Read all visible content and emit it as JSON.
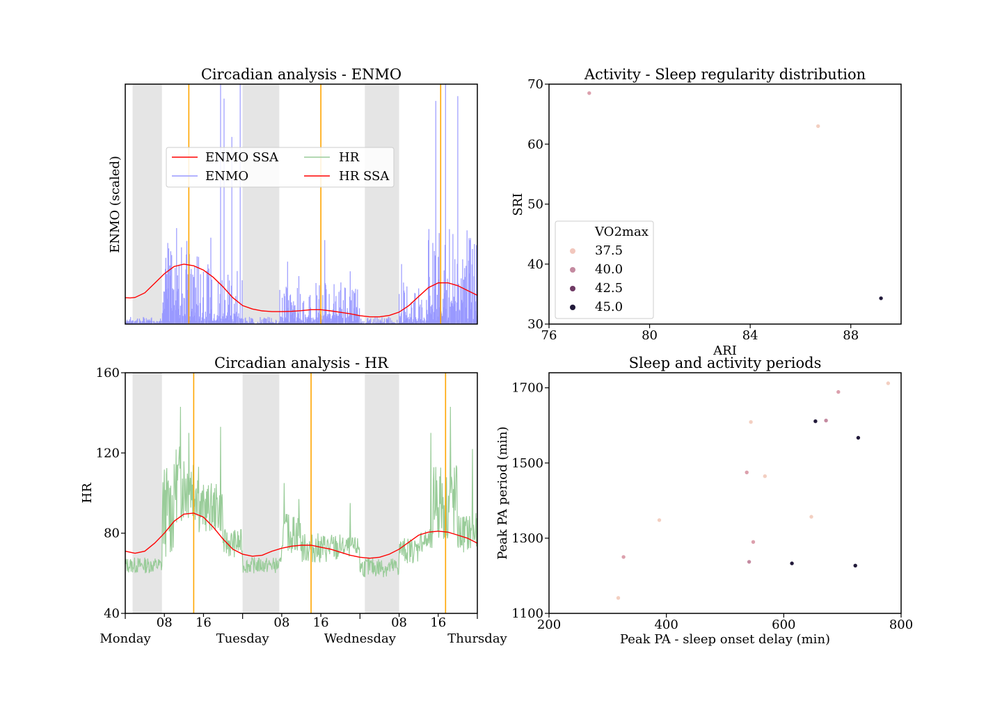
{
  "chart_data": [
    {
      "type": "line",
      "title": "Circadian analysis - ENMO",
      "xlabel": "",
      "ylabel": "ENMO (scaled)",
      "x_range_hours": [
        0,
        72
      ],
      "ylim": [
        0,
        1
      ],
      "night_shading_hours": [
        [
          1.5,
          7.5
        ],
        [
          24,
          31.5
        ],
        [
          49,
          56
        ]
      ],
      "peak_lines_hours": [
        13,
        40,
        64.5
      ],
      "legend": {
        "position": "upper-center",
        "entries": [
          "ENMO SSA",
          "ENMO",
          "HR",
          "HR SSA"
        ]
      },
      "series": [
        {
          "name": "ENMO SSA",
          "color": "#ff0000",
          "points": [
            [
              0,
              0.11
            ],
            [
              1,
              0.109
            ],
            [
              2,
              0.111
            ],
            [
              4,
              0.13
            ],
            [
              6,
              0.17
            ],
            [
              8,
              0.21
            ],
            [
              10,
              0.24
            ],
            [
              12,
              0.25
            ],
            [
              14,
              0.243
            ],
            [
              16,
              0.225
            ],
            [
              18,
              0.195
            ],
            [
              20,
              0.155
            ],
            [
              22,
              0.11
            ],
            [
              24,
              0.077
            ],
            [
              26,
              0.063
            ],
            [
              28,
              0.055
            ],
            [
              30,
              0.052
            ],
            [
              32,
              0.052
            ],
            [
              34,
              0.053
            ],
            [
              36,
              0.056
            ],
            [
              38,
              0.06
            ],
            [
              40,
              0.06
            ],
            [
              42,
              0.055
            ],
            [
              44,
              0.049
            ],
            [
              46,
              0.043
            ],
            [
              48,
              0.035
            ],
            [
              50,
              0.03
            ],
            [
              52,
              0.03
            ],
            [
              54,
              0.036
            ],
            [
              56,
              0.05
            ],
            [
              58,
              0.077
            ],
            [
              60,
              0.115
            ],
            [
              62,
              0.152
            ],
            [
              64,
              0.172
            ],
            [
              66,
              0.172
            ],
            [
              68,
              0.16
            ],
            [
              70,
              0.14
            ],
            [
              72,
              0.12
            ]
          ]
        },
        {
          "name": "ENMO",
          "color": "#9999ff",
          "segments": [
            [
              0,
              7.5,
              0.01,
              0.03
            ],
            [
              7.5,
              13,
              0.1,
              0.36
            ],
            [
              13,
              16,
              0.06,
              0.3
            ],
            [
              16,
              24,
              0.03,
              0.25
            ],
            [
              24,
              31.5,
              0.005,
              0.03
            ],
            [
              31.5,
              39,
              0.02,
              0.16
            ],
            [
              39,
              48,
              0.03,
              0.18
            ],
            [
              48,
              56,
              0.005,
              0.03
            ],
            [
              56,
              62,
              0.02,
              0.18
            ],
            [
              62,
              72,
              0.08,
              0.4
            ]
          ],
          "spikes": [
            [
              10.5,
              0.4
            ],
            [
              11.5,
              0.32
            ],
            [
              12.5,
              0.29
            ],
            [
              15,
              0.28
            ],
            [
              17.5,
              0.36
            ],
            [
              19.5,
              1.0
            ],
            [
              20.2,
              0.94
            ],
            [
              21.8,
              0.78
            ],
            [
              23.5,
              1.0
            ],
            [
              33.2,
              0.26
            ],
            [
              35.5,
              0.2
            ],
            [
              40.8,
              0.35
            ],
            [
              46,
              0.22
            ],
            [
              56.5,
              0.25
            ],
            [
              62,
              0.35
            ],
            [
              63.5,
              0.93
            ],
            [
              64,
              0.28
            ],
            [
              65.5,
              1.0
            ],
            [
              67,
              0.32
            ],
            [
              68,
              0.95
            ],
            [
              69,
              0.27
            ],
            [
              70.5,
              0.35
            ]
          ]
        }
      ]
    },
    {
      "type": "scatter",
      "title": "Activity - Sleep regularity distribution",
      "xlabel": "ARI",
      "ylabel": "SRI",
      "xlim": [
        76,
        90
      ],
      "ylim": [
        30,
        70
      ],
      "xticks": [
        76,
        80,
        84,
        88
      ],
      "yticks": [
        30,
        40,
        50,
        60,
        70
      ],
      "legend": {
        "position": "lower-left",
        "title": "VO2max",
        "entries": [
          {
            "label": "37.5",
            "color": "#f2c7bd"
          },
          {
            "label": "40.0",
            "color": "#c48aa0"
          },
          {
            "label": "42.5",
            "color": "#6f3a64"
          },
          {
            "label": "45.0",
            "color": "#221a3a"
          }
        ]
      },
      "points": [
        {
          "x": 77.6,
          "y": 68.5,
          "color": "#dca0ad"
        },
        {
          "x": 86.7,
          "y": 63.0,
          "color": "#f3cfc1"
        },
        {
          "x": 89.2,
          "y": 34.3,
          "color": "#221a3a"
        }
      ]
    },
    {
      "type": "line",
      "title": "Circadian analysis - HR",
      "xlabel": "",
      "ylabel": "HR",
      "x_range_hours": [
        0,
        72
      ],
      "ylim": [
        40,
        160
      ],
      "yticks": [
        40,
        80,
        120,
        160
      ],
      "xtick_labels": [
        {
          "h": 8,
          "label": "08"
        },
        {
          "h": 16,
          "label": "16"
        },
        {
          "h": 32,
          "label": "08"
        },
        {
          "h": 40,
          "label": "16"
        },
        {
          "h": 56,
          "label": "08"
        },
        {
          "h": 64,
          "label": "16"
        }
      ],
      "day_labels": [
        {
          "h": 0,
          "label": "Monday"
        },
        {
          "h": 24,
          "label": "Tuesday"
        },
        {
          "h": 48,
          "label": "Wednesday"
        },
        {
          "h": 72,
          "label": "Thursday"
        }
      ],
      "night_shading_hours": [
        [
          1.5,
          7.5
        ],
        [
          24,
          31.5
        ],
        [
          49,
          56
        ]
      ],
      "peak_lines_hours": [
        14,
        38,
        65.5
      ],
      "series": [
        {
          "name": "HR",
          "color": "#99cc99",
          "segments": [
            [
              0,
              7.5,
              60,
              68
            ],
            [
              7.5,
              10,
              68,
              115
            ],
            [
              10,
              15,
              85,
              125
            ],
            [
              15,
              20,
              80,
              105
            ],
            [
              20,
              24,
              68,
              82
            ],
            [
              24,
              32,
              60,
              68
            ],
            [
              32,
              36,
              70,
              90
            ],
            [
              36,
              44,
              65,
              80
            ],
            [
              44,
              48,
              68,
              78
            ],
            [
              48,
              56,
              58,
              68
            ],
            [
              56,
              60,
              65,
              78
            ],
            [
              60,
              63,
              70,
              82
            ],
            [
              63,
              68,
              75,
              115
            ],
            [
              68,
              72,
              70,
              90
            ]
          ],
          "spikes": [
            [
              11.3,
              143
            ],
            [
              13,
              130
            ],
            [
              19.5,
              133
            ],
            [
              32.5,
              105
            ],
            [
              35.5,
              97
            ],
            [
              46,
              95
            ],
            [
              62.5,
              130
            ],
            [
              63.5,
              113
            ],
            [
              66.5,
              143
            ],
            [
              71,
              122
            ]
          ]
        },
        {
          "name": "HR SSA",
          "color": "#ff0000",
          "points": [
            [
              0,
              71
            ],
            [
              1,
              70.5
            ],
            [
              2,
              70
            ],
            [
              4,
              71
            ],
            [
              6,
              75
            ],
            [
              8,
              80
            ],
            [
              10,
              86
            ],
            [
              12,
              89.5
            ],
            [
              14,
              90
            ],
            [
              16,
              88
            ],
            [
              18,
              83
            ],
            [
              20,
              77
            ],
            [
              22,
              72
            ],
            [
              24,
              69.5
            ],
            [
              26,
              68.5
            ],
            [
              28,
              69
            ],
            [
              30,
              71
            ],
            [
              32,
              72.5
            ],
            [
              34,
              73.5
            ],
            [
              36,
              74
            ],
            [
              38,
              74
            ],
            [
              40,
              73
            ],
            [
              42,
              72
            ],
            [
              44,
              70.5
            ],
            [
              46,
              69
            ],
            [
              48,
              68
            ],
            [
              50,
              67.5
            ],
            [
              52,
              68
            ],
            [
              54,
              69.5
            ],
            [
              56,
              72
            ],
            [
              58,
              75.5
            ],
            [
              60,
              79
            ],
            [
              62,
              80.5
            ],
            [
              64,
              81
            ],
            [
              66,
              80.5
            ],
            [
              68,
              79
            ],
            [
              70,
              77.5
            ],
            [
              72,
              75
            ]
          ]
        }
      ]
    },
    {
      "type": "scatter",
      "title": "Sleep and activity periods",
      "xlabel": "Peak PA - sleep onset delay (min)",
      "ylabel": "Peak PA period (min)",
      "xlim": [
        200,
        800
      ],
      "ylim": [
        1100,
        1740
      ],
      "xticks": [
        200,
        400,
        600,
        800
      ],
      "yticks": [
        1100,
        1300,
        1500,
        1700
      ],
      "points": [
        {
          "x": 778,
          "y": 1712,
          "color": "#f3cfc1"
        },
        {
          "x": 693,
          "y": 1689,
          "color": "#dca0ad"
        },
        {
          "x": 544,
          "y": 1609,
          "color": "#f3cfc1"
        },
        {
          "x": 654,
          "y": 1611,
          "color": "#221a3a"
        },
        {
          "x": 672,
          "y": 1613,
          "color": "#c48aa0"
        },
        {
          "x": 727,
          "y": 1567,
          "color": "#221a3a"
        },
        {
          "x": 537,
          "y": 1475,
          "color": "#dca0ad"
        },
        {
          "x": 568,
          "y": 1465,
          "color": "#f3cfc1"
        },
        {
          "x": 388,
          "y": 1348,
          "color": "#f3cfc1"
        },
        {
          "x": 647,
          "y": 1357,
          "color": "#f3cfc1"
        },
        {
          "x": 548,
          "y": 1290,
          "color": "#dca0ad"
        },
        {
          "x": 327,
          "y": 1250,
          "color": "#dca0ad"
        },
        {
          "x": 541,
          "y": 1237,
          "color": "#c48aa0"
        },
        {
          "x": 614,
          "y": 1233,
          "color": "#221a3a"
        },
        {
          "x": 722,
          "y": 1227,
          "color": "#221a3a"
        },
        {
          "x": 318,
          "y": 1141,
          "color": "#f3cfc1"
        }
      ]
    }
  ],
  "colors": {
    "night_shade": "#e5e5e5",
    "peak_line": "#ffa500"
  }
}
